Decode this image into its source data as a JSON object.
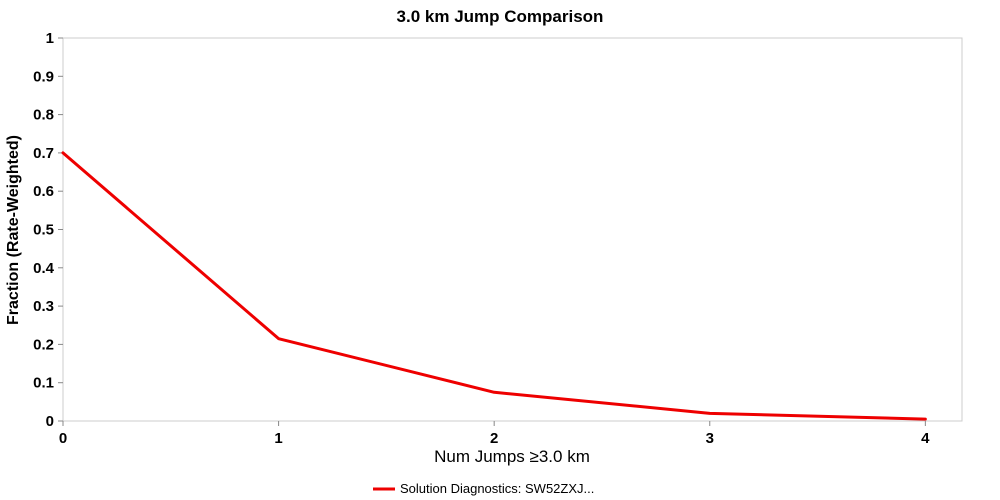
{
  "chart_data": {
    "type": "line",
    "title": "3.0 km Jump Comparison",
    "xlabel": "Num Jumps ≥3.0 km",
    "ylabel": "Fraction (Rate-Weighted)",
    "x": [
      0,
      1,
      2,
      3,
      4
    ],
    "series": [
      {
        "name": "Solution Diagnostics: SW52ZXJ...",
        "values": [
          0.7,
          0.215,
          0.075,
          0.02,
          0.005
        ],
        "color": "#ee0000"
      }
    ],
    "xlim": [
      0,
      4.17
    ],
    "ylim": [
      0,
      1
    ],
    "xticks": [
      0,
      1,
      2,
      3,
      4
    ],
    "yticks": [
      0,
      0.1,
      0.2,
      0.3,
      0.4,
      0.5,
      0.6,
      0.7,
      0.8,
      0.9,
      1
    ],
    "grid": false,
    "legend_position": "bottom",
    "colors": {
      "plot_border": "#cccccc",
      "tick": "#888888",
      "text": "#000000",
      "background": "#ffffff"
    }
  }
}
